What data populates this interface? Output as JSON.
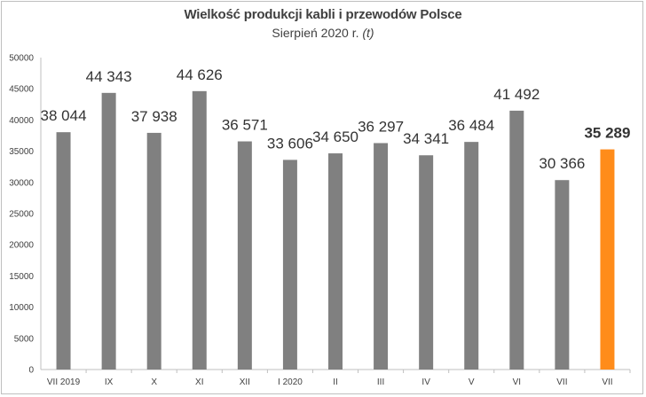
{
  "title": "Wielkość produkcji kabli i przewodów Polsce",
  "subtitle": "Sierpień 2020 r.",
  "unit": "(t)",
  "colors": {
    "bar": "#808080",
    "highlight": "#ff8c1a",
    "axis": "#bfbfbf",
    "text": "#404040"
  },
  "chart_data": {
    "type": "bar",
    "title": "Wielkość produkcji kabli i przewodów Polsce",
    "subtitle": "Sierpień 2020 r. (t)",
    "categories": [
      "VII 2019",
      "IX",
      "X",
      "XI",
      "XII",
      "I 2020",
      "II",
      "III",
      "IV",
      "V",
      "VI",
      "VII",
      "VII"
    ],
    "values": [
      38044,
      44343,
      37938,
      44626,
      36571,
      33606,
      34650,
      36297,
      34341,
      36484,
      41492,
      30366,
      35289
    ],
    "labels": [
      "38 044",
      "44 343",
      "37 938",
      "44 626",
      "36 571",
      "33 606",
      "34 650",
      "36 297",
      "34 341",
      "36 484",
      "41 492",
      "30 366",
      "35 289"
    ],
    "highlight_index": 12,
    "ylim": [
      0,
      50000
    ],
    "yticks": [
      0,
      5000,
      10000,
      15000,
      20000,
      25000,
      30000,
      35000,
      40000,
      45000,
      50000
    ],
    "grid": false,
    "legend": "none",
    "xlabel": "",
    "ylabel": ""
  }
}
